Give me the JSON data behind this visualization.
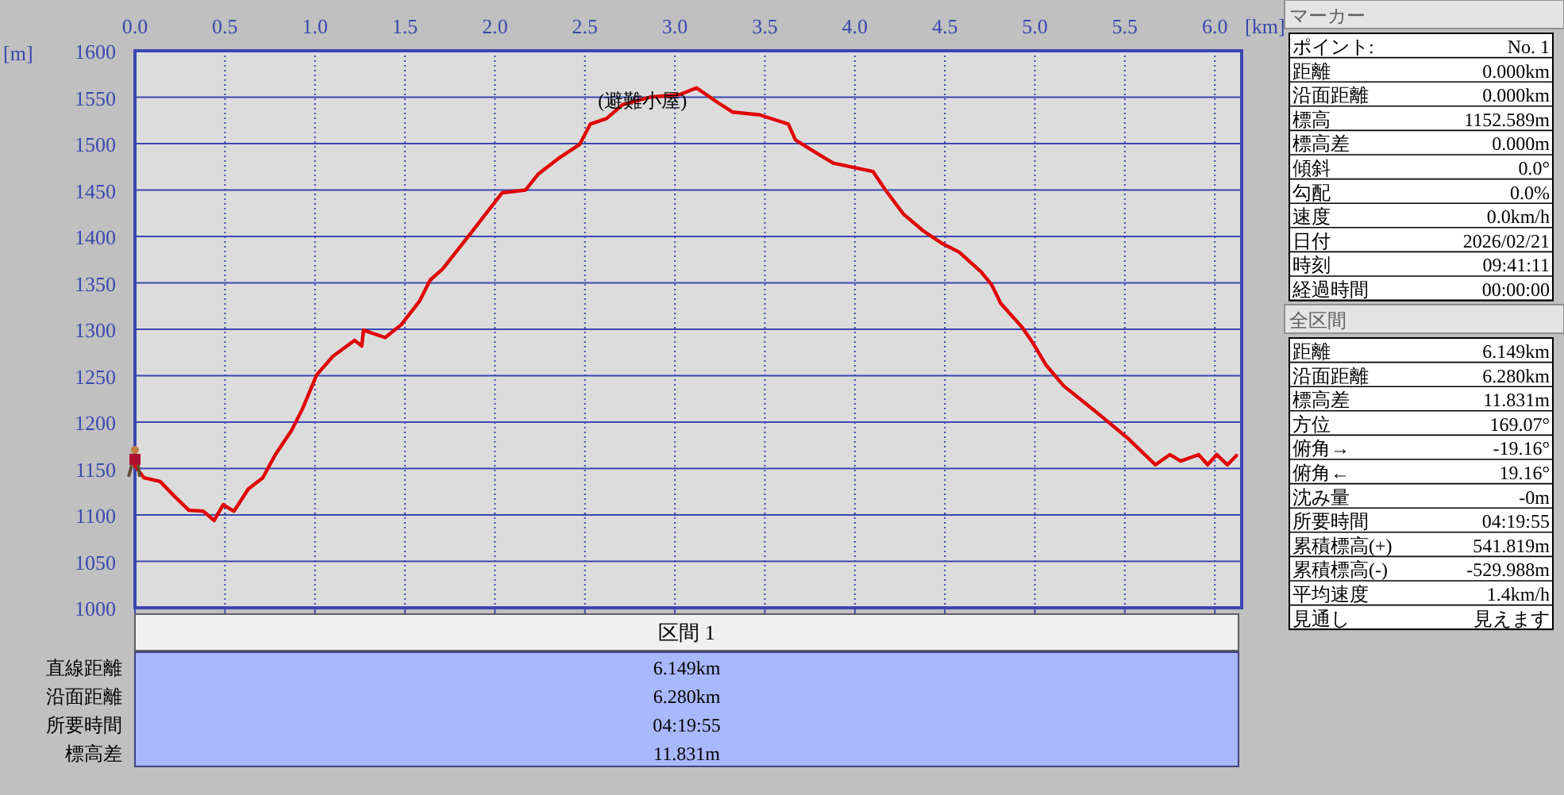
{
  "chart_data": [
    {
      "type": "line",
      "xlabel": "[km]",
      "ylabel": "[m]",
      "xlim": [
        0,
        6.149
      ],
      "ylim": [
        1000,
        1600
      ],
      "xticks": [
        {
          "value": 0,
          "label": "0.0"
        },
        0.5,
        {
          "value": 1,
          "label": "1.0"
        },
        1.5,
        {
          "value": 2,
          "label": "2.0"
        },
        2.5,
        {
          "value": 3,
          "label": "3.0"
        },
        3.5,
        {
          "value": 4,
          "label": "4.0"
        },
        4.5,
        {
          "value": 5,
          "label": "5.0"
        },
        5.5,
        {
          "value": 6,
          "label": "6.0"
        }
      ],
      "yticks": [
        1000,
        1050,
        1100,
        1150,
        1200,
        1250,
        1300,
        1350,
        1400,
        1450,
        1500,
        1550,
        1600
      ],
      "grid": true,
      "line_style": "solid",
      "annotations": [
        {
          "text": "(避難小屋)",
          "x": 2.82,
          "y": 1550
        }
      ],
      "series": [
        {
          "color": "#e00000",
          "x": [
            0,
            0.05,
            0.14,
            0.22,
            0.3,
            0.38,
            0.44,
            0.49,
            0.55,
            0.63,
            0.71,
            0.78,
            0.87,
            0.93,
            1.01,
            1.1,
            1.22,
            1.26,
            1.27,
            1.39,
            1.48,
            1.58,
            1.64,
            1.71,
            1.86,
            2.04,
            2.17,
            2.24,
            2.36,
            2.47,
            2.53,
            2.62,
            2.71,
            2.86,
            3.03,
            3.12,
            3.24,
            3.32,
            3.47,
            3.63,
            3.67,
            3.76,
            3.88,
            4.1,
            4.17,
            4.27,
            4.38,
            4.48,
            4.58,
            4.7,
            4.76,
            4.81,
            4.93,
            4.99,
            5.06,
            5.16,
            5.34,
            5.52,
            5.67,
            5.75,
            5.81,
            5.91,
            5.96,
            6.01,
            6.07,
            6.12
          ],
          "values": [
            1153,
            1140,
            1136,
            1120,
            1105,
            1104,
            1094,
            1111,
            1104,
            1128,
            1140,
            1165,
            1191,
            1214,
            1251,
            1271,
            1288,
            1282,
            1299,
            1291,
            1305,
            1330,
            1353,
            1365,
            1402,
            1447,
            1450,
            1467,
            1485,
            1499,
            1521,
            1527,
            1542,
            1550,
            1553,
            1560,
            1544,
            1534,
            1531,
            1521,
            1504,
            1493,
            1479,
            1470,
            1450,
            1424,
            1406,
            1393,
            1383,
            1362,
            1348,
            1328,
            1302,
            1285,
            1262,
            1239,
            1211,
            1182,
            1154,
            1165,
            1158,
            1165,
            1154,
            1165,
            1154,
            1164
          ]
        }
      ]
    },
    {
      "type": "other",
      "title": "区間 1",
      "annotations": [
        "直線距離",
        "6.149km",
        "沿面距離",
        "6.280km",
        "所要時間",
        "04:19:55",
        "標高差",
        "11.831m"
      ]
    },
    {
      "type": "other",
      "title": "マーカー",
      "annotations": [
        "ポイント:",
        "No. 1",
        "距離",
        "0.000km",
        "沿面距離",
        "0.000km",
        "標高",
        "1152.589m",
        "標高差",
        "0.000m",
        "傾斜",
        "0.0°",
        "勾配",
        "0.0%",
        "速度",
        "0.0km/h",
        "日付",
        "2026/02/21",
        "時刻",
        "09:41:11",
        "経過時間",
        "00:00:00"
      ]
    },
    {
      "type": "other",
      "title": "全区間",
      "annotations": [
        "距離",
        "6.149km",
        "沿面距離",
        "6.280km",
        "標高差",
        "11.831m",
        "方位",
        "169.07°",
        "俯角→",
        "-19.16°",
        "俯角←",
        "19.16°",
        "沈み量",
        "-0m",
        "所要時間",
        "04:19:55",
        "累積標高(+)",
        "541.819m",
        "累積標高(-)",
        "-529.988m",
        "平均速度",
        "1.4km/h",
        "見通し",
        "見えます"
      ]
    }
  ]
}
